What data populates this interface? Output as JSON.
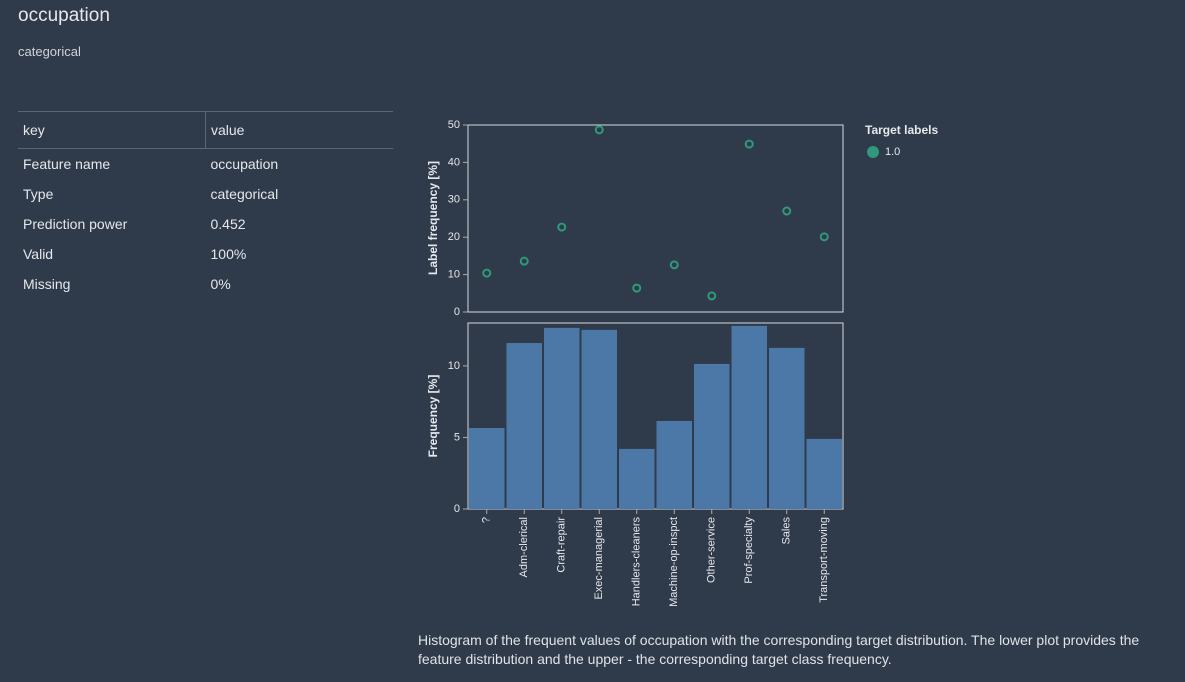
{
  "header": {
    "title": "occupation",
    "subtitle": "categorical"
  },
  "table": {
    "columns": [
      "key",
      "value"
    ],
    "rows": [
      [
        "Feature name",
        "occupation"
      ],
      [
        "Type",
        "categorical"
      ],
      [
        "Prediction power",
        "0.452"
      ],
      [
        "Valid",
        "100%"
      ],
      [
        "Missing",
        "0%"
      ]
    ]
  },
  "chart_data": [
    {
      "type": "scatter",
      "y_label": "Label frequency [%]",
      "legend_title": "Target labels",
      "series": [
        {
          "name": "1.0",
          "color": "#2e9a7a",
          "values": [
            10.4,
            13.6,
            22.7,
            48.7,
            6.4,
            12.6,
            4.3,
            44.9,
            27.0,
            20.1
          ]
        }
      ],
      "ylim": [
        0,
        50
      ],
      "yticks": [
        0,
        10,
        20,
        30,
        40,
        50
      ]
    },
    {
      "type": "bar",
      "y_label": "Frequency [%]",
      "color": "#4c78a8",
      "categories": [
        "?",
        "Adm-clerical",
        "Craft-repair",
        "Exec-managerial",
        "Handlers-cleaners",
        "Machine-op-inspct",
        "Other-service",
        "Prof-specialty",
        "Sales",
        "Transport-moving"
      ],
      "values": [
        5.66,
        11.6,
        12.66,
        12.52,
        4.2,
        6.15,
        10.14,
        12.8,
        11.26,
        4.9
      ],
      "ylim": [
        0,
        13
      ],
      "yticks": [
        0,
        5,
        10
      ]
    }
  ],
  "caption": "Histogram of the frequent values of occupation with the corresponding target distribution. The lower plot provides the feature distribution and the upper - the corresponding target class frequency."
}
